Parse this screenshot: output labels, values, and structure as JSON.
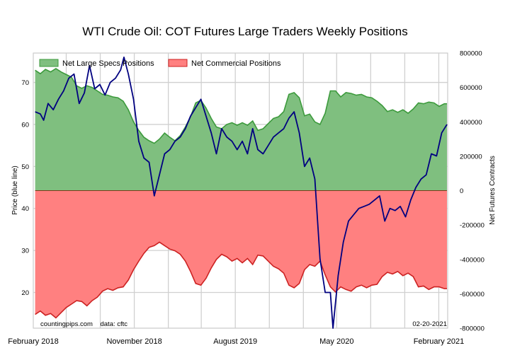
{
  "chart_data": {
    "type": "area",
    "title": "WTI Crude Oil: COT Futures Large Traders Weekly Positions",
    "ylabel_left": "Price (blue line)",
    "ylabel_right": "Net Futures Contracts",
    "x_ticks": [
      "February 2018",
      "November 2018",
      "August 2019",
      "May 2020",
      "February 2021"
    ],
    "x_range": [
      "2018-02-01",
      "2021-02-25"
    ],
    "left_axis": {
      "range": [
        11.5,
        77
      ],
      "ticks": [
        20,
        30,
        40,
        50,
        60,
        70
      ]
    },
    "right_axis": {
      "range": [
        -800000,
        800000
      ],
      "ticks": [
        -800000,
        -600000,
        -400000,
        -200000,
        0,
        200000,
        400000,
        600000,
        800000
      ]
    },
    "grid": true,
    "legend": {
      "placement": "top-left"
    },
    "colors": {
      "spec_fill": "#7fbf7f",
      "spec_line": "#3c9a3c",
      "comm_fill": "#ff8080",
      "comm_line": "#cc2222",
      "price_line": "#000080"
    },
    "footer_left": "countingpips.com    data: cftc",
    "footer_right": "02-20-2021",
    "series": [
      {
        "name": "Net Large Specs Positions",
        "axis": "right",
        "points": [
          [
            "2018-02-06",
            700000
          ],
          [
            "2018-02-20",
            680000
          ],
          [
            "2018-03-06",
            705000
          ],
          [
            "2018-03-20",
            690000
          ],
          [
            "2018-04-03",
            710000
          ],
          [
            "2018-04-17",
            690000
          ],
          [
            "2018-05-01",
            675000
          ],
          [
            "2018-05-15",
            660000
          ],
          [
            "2018-05-29",
            610000
          ],
          [
            "2018-06-12",
            595000
          ],
          [
            "2018-06-26",
            610000
          ],
          [
            "2018-07-10",
            600000
          ],
          [
            "2018-07-24",
            580000
          ],
          [
            "2018-08-07",
            560000
          ],
          [
            "2018-08-21",
            555000
          ],
          [
            "2018-09-04",
            545000
          ],
          [
            "2018-09-18",
            540000
          ],
          [
            "2018-10-02",
            520000
          ],
          [
            "2018-10-16",
            470000
          ],
          [
            "2018-10-30",
            400000
          ],
          [
            "2018-11-13",
            350000
          ],
          [
            "2018-11-27",
            310000
          ],
          [
            "2018-12-11",
            290000
          ],
          [
            "2018-12-25",
            275000
          ],
          [
            "2019-01-08",
            300000
          ],
          [
            "2019-01-22",
            335000
          ],
          [
            "2019-02-05",
            310000
          ],
          [
            "2019-02-19",
            290000
          ],
          [
            "2019-03-05",
            320000
          ],
          [
            "2019-03-19",
            370000
          ],
          [
            "2019-04-02",
            430000
          ],
          [
            "2019-04-16",
            510000
          ],
          [
            "2019-04-30",
            525000
          ],
          [
            "2019-05-14",
            480000
          ],
          [
            "2019-05-28",
            420000
          ],
          [
            "2019-06-11",
            370000
          ],
          [
            "2019-06-25",
            360000
          ],
          [
            "2019-07-09",
            385000
          ],
          [
            "2019-07-23",
            395000
          ],
          [
            "2019-08-06",
            380000
          ],
          [
            "2019-08-20",
            395000
          ],
          [
            "2019-09-03",
            380000
          ],
          [
            "2019-09-17",
            405000
          ],
          [
            "2019-10-01",
            350000
          ],
          [
            "2019-10-15",
            360000
          ],
          [
            "2019-10-29",
            390000
          ],
          [
            "2019-11-12",
            420000
          ],
          [
            "2019-11-26",
            430000
          ],
          [
            "2019-12-10",
            460000
          ],
          [
            "2019-12-24",
            560000
          ],
          [
            "2020-01-07",
            570000
          ],
          [
            "2020-01-21",
            540000
          ],
          [
            "2020-02-04",
            435000
          ],
          [
            "2020-02-18",
            445000
          ],
          [
            "2020-03-03",
            400000
          ],
          [
            "2020-03-17",
            385000
          ],
          [
            "2020-03-31",
            450000
          ],
          [
            "2020-04-14",
            580000
          ],
          [
            "2020-04-28",
            580000
          ],
          [
            "2020-05-12",
            545000
          ],
          [
            "2020-05-26",
            570000
          ],
          [
            "2020-06-09",
            565000
          ],
          [
            "2020-06-23",
            555000
          ],
          [
            "2020-07-07",
            560000
          ],
          [
            "2020-07-21",
            545000
          ],
          [
            "2020-08-04",
            540000
          ],
          [
            "2020-08-18",
            520000
          ],
          [
            "2020-09-01",
            495000
          ],
          [
            "2020-09-15",
            460000
          ],
          [
            "2020-09-29",
            470000
          ],
          [
            "2020-10-13",
            455000
          ],
          [
            "2020-10-27",
            470000
          ],
          [
            "2020-11-10",
            450000
          ],
          [
            "2020-11-24",
            475000
          ],
          [
            "2020-12-08",
            510000
          ],
          [
            "2020-12-22",
            505000
          ],
          [
            "2021-01-05",
            515000
          ],
          [
            "2021-01-19",
            510000
          ],
          [
            "2021-02-02",
            490000
          ],
          [
            "2021-02-16",
            505000
          ],
          [
            "2021-02-23",
            505000
          ]
        ]
      },
      {
        "name": "Net Commercial Positions",
        "axis": "right",
        "points": [
          [
            "2018-02-06",
            -720000
          ],
          [
            "2018-02-20",
            -700000
          ],
          [
            "2018-03-06",
            -725000
          ],
          [
            "2018-03-20",
            -715000
          ],
          [
            "2018-04-03",
            -740000
          ],
          [
            "2018-04-17",
            -710000
          ],
          [
            "2018-05-01",
            -680000
          ],
          [
            "2018-05-15",
            -660000
          ],
          [
            "2018-05-29",
            -640000
          ],
          [
            "2018-06-12",
            -645000
          ],
          [
            "2018-06-26",
            -670000
          ],
          [
            "2018-07-10",
            -640000
          ],
          [
            "2018-07-24",
            -620000
          ],
          [
            "2018-08-07",
            -585000
          ],
          [
            "2018-08-21",
            -570000
          ],
          [
            "2018-09-04",
            -580000
          ],
          [
            "2018-09-18",
            -565000
          ],
          [
            "2018-10-02",
            -560000
          ],
          [
            "2018-10-16",
            -520000
          ],
          [
            "2018-10-30",
            -460000
          ],
          [
            "2018-11-13",
            -410000
          ],
          [
            "2018-11-27",
            -365000
          ],
          [
            "2018-12-11",
            -330000
          ],
          [
            "2018-12-25",
            -320000
          ],
          [
            "2019-01-08",
            -300000
          ],
          [
            "2019-01-22",
            -320000
          ],
          [
            "2019-02-05",
            -340000
          ],
          [
            "2019-02-19",
            -350000
          ],
          [
            "2019-03-05",
            -370000
          ],
          [
            "2019-03-19",
            -410000
          ],
          [
            "2019-04-02",
            -470000
          ],
          [
            "2019-04-16",
            -540000
          ],
          [
            "2019-04-30",
            -550000
          ],
          [
            "2019-05-14",
            -510000
          ],
          [
            "2019-05-28",
            -450000
          ],
          [
            "2019-06-11",
            -400000
          ],
          [
            "2019-06-25",
            -370000
          ],
          [
            "2019-07-09",
            -385000
          ],
          [
            "2019-07-23",
            -410000
          ],
          [
            "2019-08-06",
            -395000
          ],
          [
            "2019-08-20",
            -420000
          ],
          [
            "2019-09-03",
            -395000
          ],
          [
            "2019-09-17",
            -430000
          ],
          [
            "2019-10-01",
            -375000
          ],
          [
            "2019-10-15",
            -380000
          ],
          [
            "2019-10-29",
            -410000
          ],
          [
            "2019-11-12",
            -440000
          ],
          [
            "2019-11-26",
            -455000
          ],
          [
            "2019-12-10",
            -480000
          ],
          [
            "2019-12-24",
            -550000
          ],
          [
            "2020-01-07",
            -565000
          ],
          [
            "2020-01-21",
            -540000
          ],
          [
            "2020-02-04",
            -460000
          ],
          [
            "2020-02-18",
            -430000
          ],
          [
            "2020-03-03",
            -440000
          ],
          [
            "2020-03-17",
            -410000
          ],
          [
            "2020-03-31",
            -490000
          ],
          [
            "2020-04-14",
            -560000
          ],
          [
            "2020-04-28",
            -590000
          ],
          [
            "2020-05-12",
            -560000
          ],
          [
            "2020-05-26",
            -575000
          ],
          [
            "2020-06-09",
            -585000
          ],
          [
            "2020-06-23",
            -560000
          ],
          [
            "2020-07-07",
            -550000
          ],
          [
            "2020-07-21",
            -565000
          ],
          [
            "2020-08-04",
            -550000
          ],
          [
            "2020-08-18",
            -545000
          ],
          [
            "2020-09-01",
            -500000
          ],
          [
            "2020-09-15",
            -475000
          ],
          [
            "2020-09-29",
            -485000
          ],
          [
            "2020-10-13",
            -470000
          ],
          [
            "2020-10-27",
            -495000
          ],
          [
            "2020-11-10",
            -480000
          ],
          [
            "2020-11-24",
            -500000
          ],
          [
            "2020-12-08",
            -560000
          ],
          [
            "2020-12-22",
            -555000
          ],
          [
            "2021-01-05",
            -575000
          ],
          [
            "2021-01-19",
            -560000
          ],
          [
            "2021-02-02",
            -560000
          ],
          [
            "2021-02-16",
            -570000
          ],
          [
            "2021-02-23",
            -570000
          ]
        ]
      },
      {
        "name": "",
        "axis": "left",
        "points": [
          [
            "2018-02-06",
            63
          ],
          [
            "2018-02-20",
            62.5
          ],
          [
            "2018-03-01",
            61
          ],
          [
            "2018-03-13",
            65
          ],
          [
            "2018-03-27",
            63.5
          ],
          [
            "2018-04-10",
            66
          ],
          [
            "2018-04-24",
            68
          ],
          [
            "2018-05-08",
            71
          ],
          [
            "2018-05-22",
            72
          ],
          [
            "2018-06-05",
            65
          ],
          [
            "2018-06-19",
            67.5
          ],
          [
            "2018-07-03",
            74
          ],
          [
            "2018-07-17",
            68.5
          ],
          [
            "2018-07-31",
            69.5
          ],
          [
            "2018-08-14",
            67
          ],
          [
            "2018-08-28",
            70
          ],
          [
            "2018-09-11",
            71
          ],
          [
            "2018-09-25",
            73
          ],
          [
            "2018-10-04",
            76
          ],
          [
            "2018-10-16",
            72
          ],
          [
            "2018-10-30",
            66
          ],
          [
            "2018-11-13",
            56
          ],
          [
            "2018-11-27",
            52
          ],
          [
            "2018-12-11",
            51
          ],
          [
            "2018-12-25",
            43
          ],
          [
            "2019-01-08",
            48
          ],
          [
            "2019-01-22",
            53
          ],
          [
            "2019-02-05",
            54
          ],
          [
            "2019-02-19",
            56
          ],
          [
            "2019-03-05",
            57
          ],
          [
            "2019-03-19",
            59
          ],
          [
            "2019-04-02",
            62
          ],
          [
            "2019-04-16",
            64
          ],
          [
            "2019-04-30",
            66
          ],
          [
            "2019-05-14",
            62
          ],
          [
            "2019-05-28",
            58
          ],
          [
            "2019-06-11",
            53
          ],
          [
            "2019-06-25",
            59
          ],
          [
            "2019-07-09",
            57
          ],
          [
            "2019-07-23",
            56
          ],
          [
            "2019-08-06",
            54
          ],
          [
            "2019-08-20",
            56
          ],
          [
            "2019-09-03",
            53
          ],
          [
            "2019-09-17",
            59
          ],
          [
            "2019-10-01",
            54
          ],
          [
            "2019-10-15",
            53
          ],
          [
            "2019-10-29",
            55
          ],
          [
            "2019-11-12",
            57
          ],
          [
            "2019-11-26",
            58
          ],
          [
            "2019-12-10",
            59
          ],
          [
            "2019-12-24",
            61.5
          ],
          [
            "2020-01-07",
            63
          ],
          [
            "2020-01-21",
            58
          ],
          [
            "2020-02-04",
            50
          ],
          [
            "2020-02-18",
            52
          ],
          [
            "2020-03-03",
            47
          ],
          [
            "2020-03-17",
            28
          ],
          [
            "2020-03-31",
            20
          ],
          [
            "2020-04-14",
            20
          ],
          [
            "2020-04-21",
            11.5
          ],
          [
            "2020-05-05",
            24
          ],
          [
            "2020-05-19",
            32
          ],
          [
            "2020-06-02",
            37
          ],
          [
            "2020-06-16",
            38.5
          ],
          [
            "2020-06-30",
            40
          ],
          [
            "2020-07-14",
            40.5
          ],
          [
            "2020-07-28",
            41
          ],
          [
            "2020-08-11",
            42
          ],
          [
            "2020-08-25",
            43
          ],
          [
            "2020-09-08",
            37
          ],
          [
            "2020-09-22",
            40
          ],
          [
            "2020-10-06",
            39.5
          ],
          [
            "2020-10-20",
            40.5
          ],
          [
            "2020-11-03",
            38
          ],
          [
            "2020-11-17",
            42
          ],
          [
            "2020-12-01",
            45
          ],
          [
            "2020-12-15",
            47
          ],
          [
            "2020-12-29",
            48
          ],
          [
            "2021-01-12",
            53
          ],
          [
            "2021-01-26",
            52.5
          ],
          [
            "2021-02-09",
            58
          ],
          [
            "2021-02-23",
            60
          ]
        ]
      }
    ]
  }
}
